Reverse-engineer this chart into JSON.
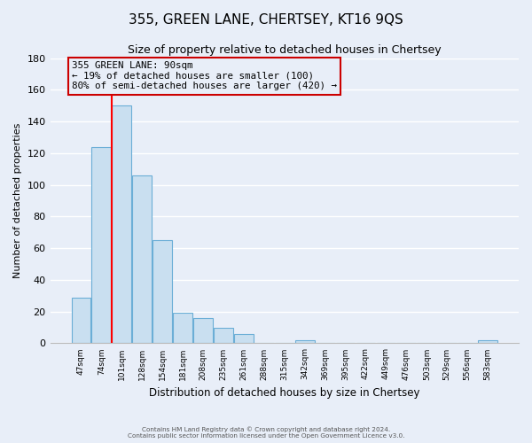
{
  "title": "355, GREEN LANE, CHERTSEY, KT16 9QS",
  "subtitle": "Size of property relative to detached houses in Chertsey",
  "xlabel": "Distribution of detached houses by size in Chertsey",
  "ylabel": "Number of detached properties",
  "bar_labels": [
    "47sqm",
    "74sqm",
    "101sqm",
    "128sqm",
    "154sqm",
    "181sqm",
    "208sqm",
    "235sqm",
    "261sqm",
    "288sqm",
    "315sqm",
    "342sqm",
    "369sqm",
    "395sqm",
    "422sqm",
    "449sqm",
    "476sqm",
    "503sqm",
    "529sqm",
    "556sqm",
    "583sqm"
  ],
  "bar_heights": [
    29,
    124,
    150,
    106,
    65,
    19,
    16,
    10,
    6,
    0,
    0,
    2,
    0,
    0,
    0,
    0,
    0,
    0,
    0,
    0,
    2
  ],
  "bar_color": "#c9dff0",
  "bar_edge_color": "#6baed6",
  "ylim": [
    0,
    180
  ],
  "yticks": [
    0,
    20,
    40,
    60,
    80,
    100,
    120,
    140,
    160,
    180
  ],
  "vline_color": "red",
  "annotation_title": "355 GREEN LANE: 90sqm",
  "annotation_line1": "← 19% of detached houses are smaller (100)",
  "annotation_line2": "80% of semi-detached houses are larger (420) →",
  "footer_line1": "Contains HM Land Registry data © Crown copyright and database right 2024.",
  "footer_line2": "Contains public sector information licensed under the Open Government Licence v3.0.",
  "bg_color": "#e8eef8",
  "grid_color": "#ffffff",
  "title_fontsize": 11,
  "subtitle_fontsize": 9
}
